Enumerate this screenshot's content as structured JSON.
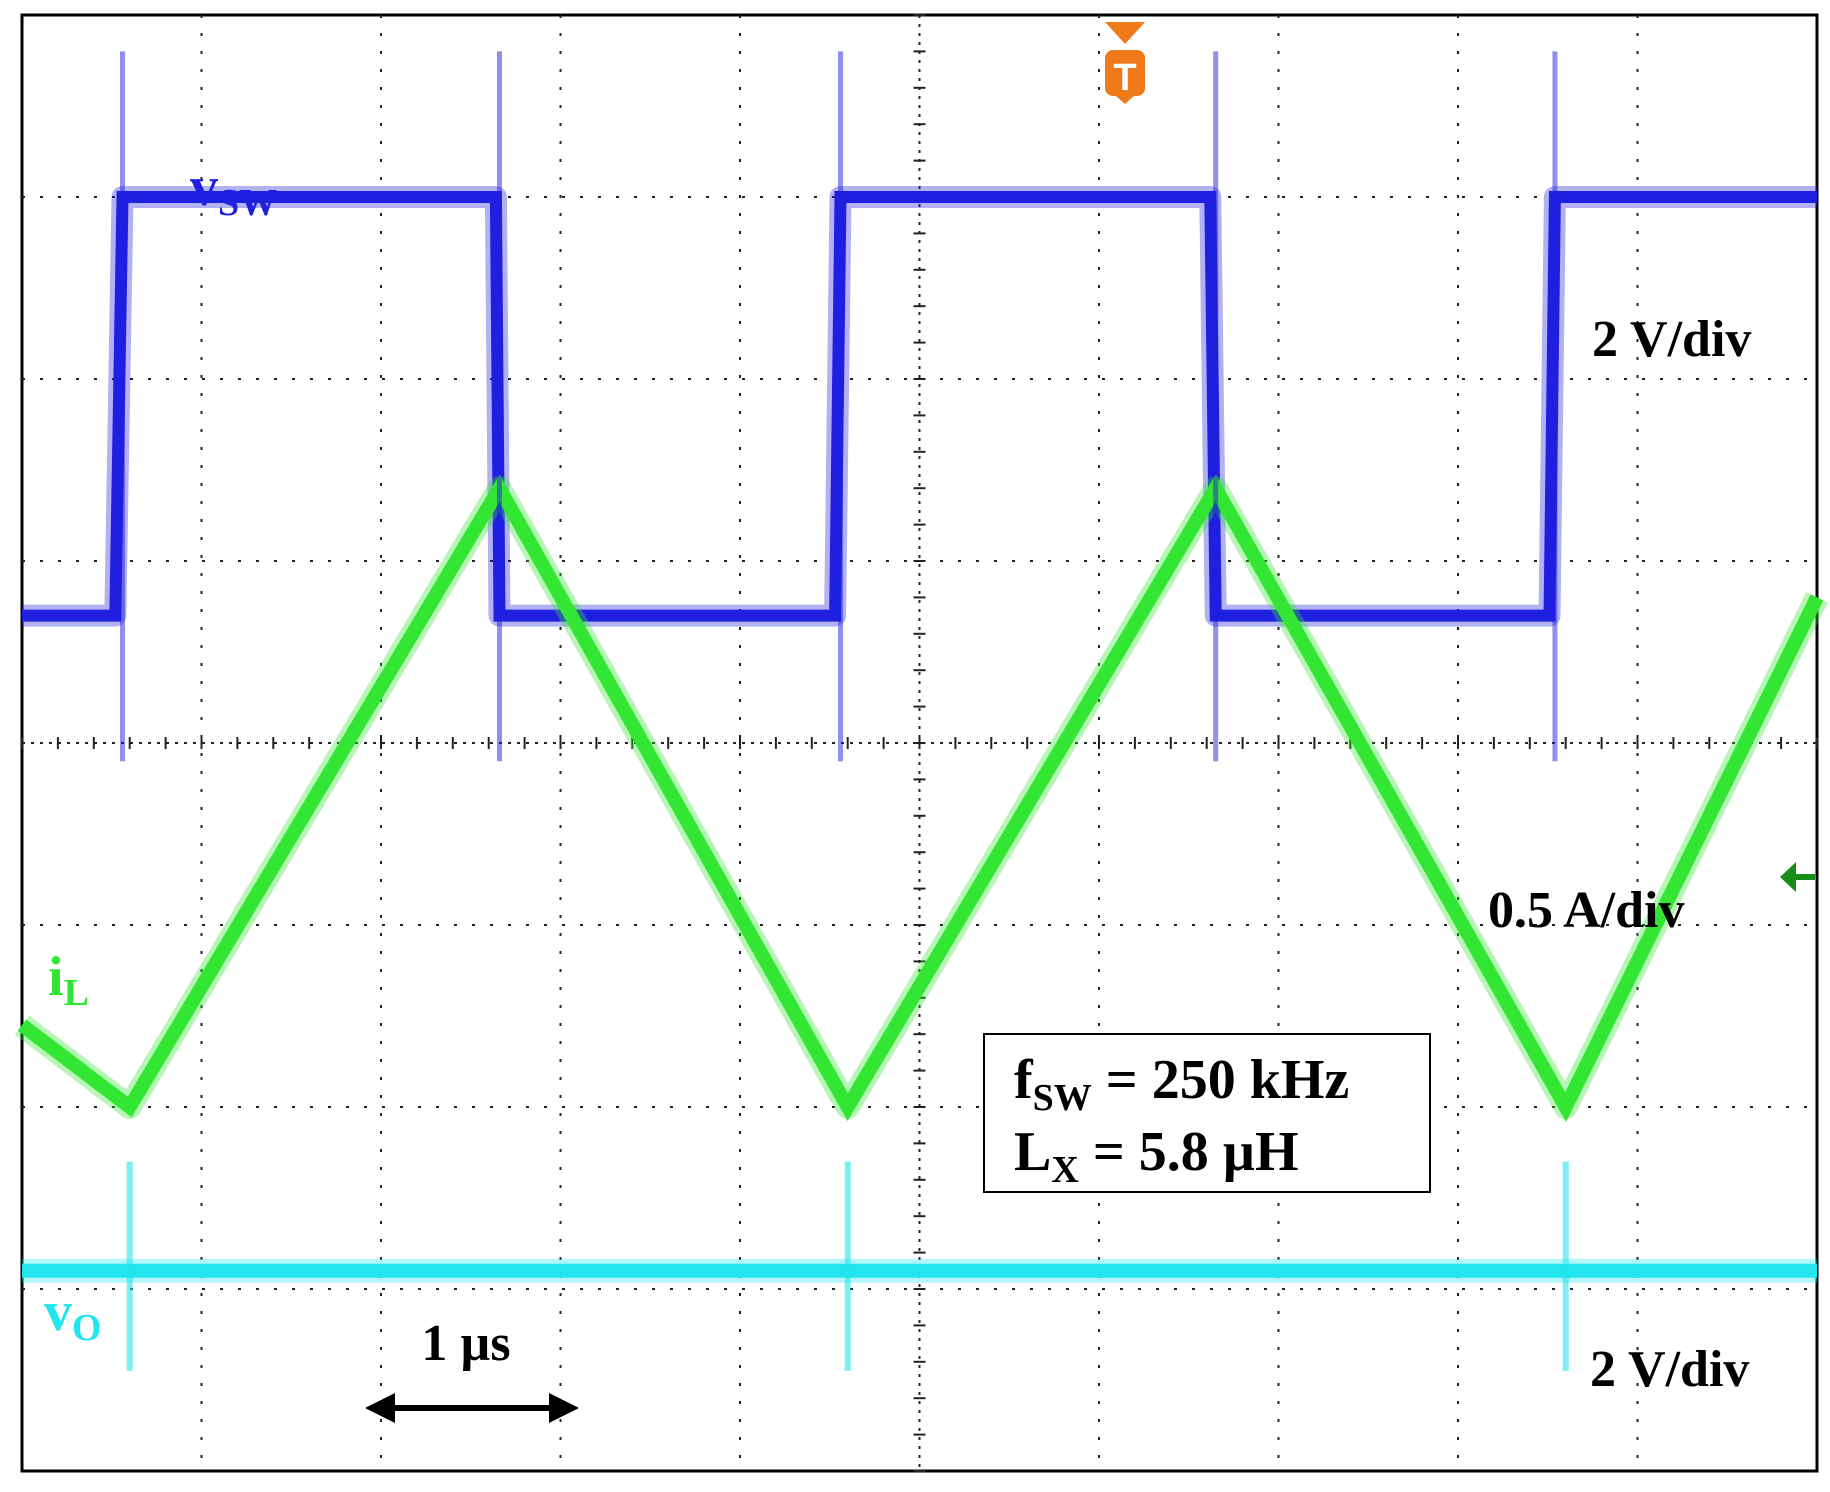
{
  "chart_data": {
    "type": "line",
    "title": "",
    "xlabel": "",
    "ylabel": "",
    "grid": true,
    "grid_divisions": {
      "x": 10,
      "y": 8
    },
    "x_unit": "µs",
    "xlim": [
      0,
      10
    ],
    "time_scale_label": "1 µs",
    "trigger_marker": "T",
    "series": [
      {
        "name": "vSW",
        "label_main": "v",
        "label_sub": "SW",
        "scale": "2 V/div",
        "color": "#1f1fe0",
        "x": [
          0,
          0.52,
          0.56,
          0.7,
          2.64,
          2.66,
          2.78,
          4.53,
          4.56,
          4.7,
          6.62,
          6.65,
          6.78,
          8.51,
          8.54,
          8.68,
          10
        ],
        "y": [
          0.7,
          0.7,
          3.0,
          3.0,
          3.0,
          0.7,
          0.7,
          0.7,
          3.0,
          3.0,
          3.0,
          0.7,
          0.7,
          0.7,
          3.0,
          3.0,
          3.0
        ]
      },
      {
        "name": "iL",
        "label_main": "i",
        "label_sub": "L",
        "scale": "0.5 A/div",
        "color": "#33e633",
        "x": [
          0,
          0.6,
          2.66,
          4.6,
          6.65,
          8.6,
          10
        ],
        "y": [
          -1.55,
          -2.0,
          1.4,
          -2.0,
          1.4,
          -2.0,
          0.8
        ]
      },
      {
        "name": "vO",
        "label_main": "v",
        "label_sub": "O",
        "scale": "2 V/div",
        "color": "#22e5ee",
        "x": [
          0,
          10
        ],
        "y": [
          -2.9,
          -2.9
        ]
      }
    ],
    "annotation": {
      "fsw_main": "f",
      "fsw_sub": "SW",
      "fsw_rest": " = 250 kHz",
      "lx_main": "L",
      "lx_sub": "X",
      "lx_rest": " = 5.8 µH"
    }
  }
}
